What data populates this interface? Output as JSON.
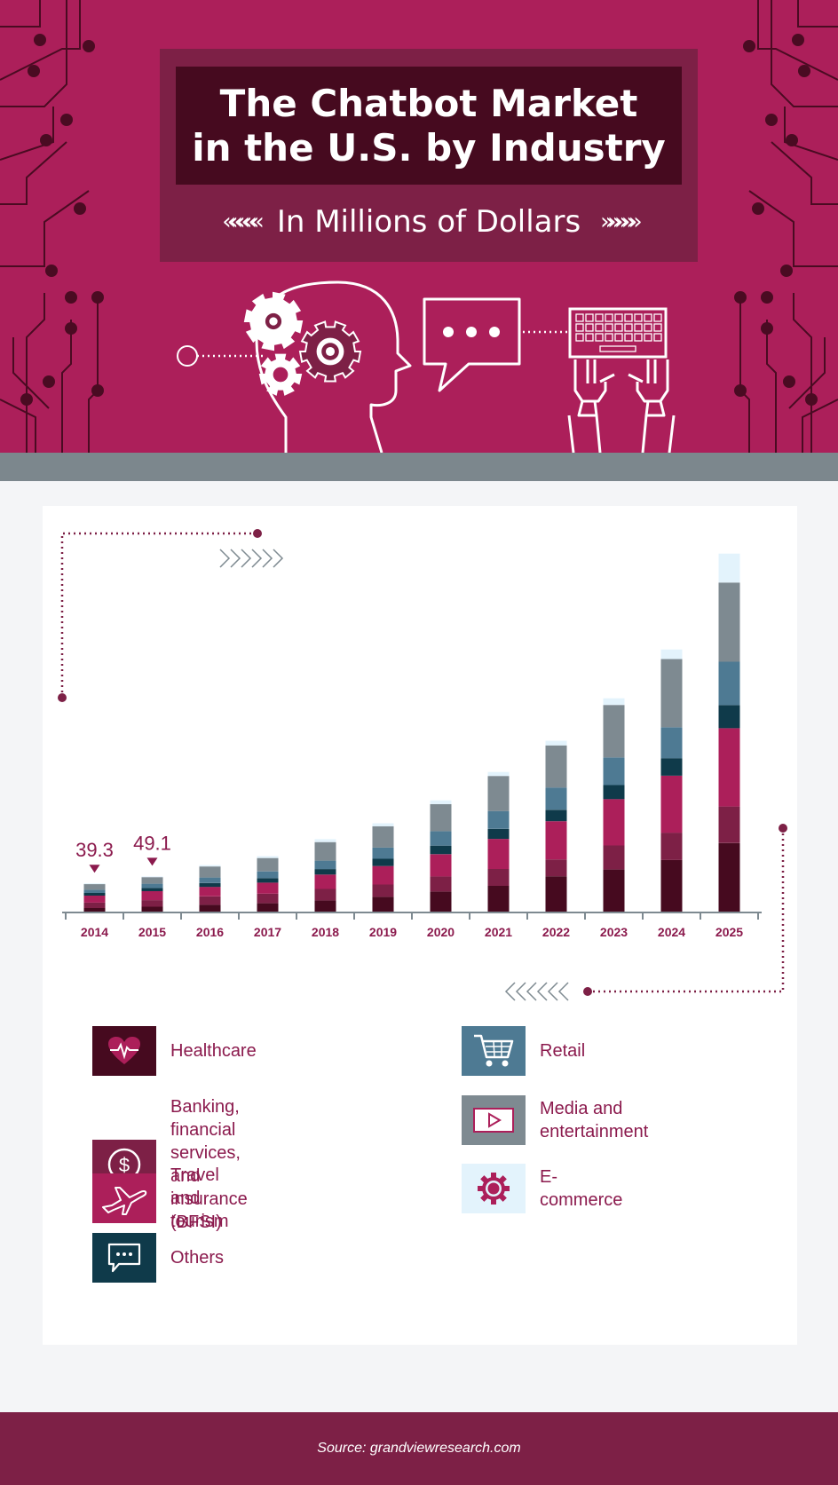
{
  "header": {
    "title_line1": "The Chatbot Market",
    "title_line2": "in the U.S. by Industry",
    "subtitle": "In Millions of Dollars",
    "chevrons_left": "«««««",
    "chevrons_right": "»»»»»"
  },
  "colors": {
    "header_bg": "#ac1f5a",
    "title_box": "#7d2046",
    "title_inner": "#460a1f",
    "band": "#7c878d",
    "footer": "#7d2046",
    "label": "#8b1a4d"
  },
  "chart_data": {
    "type": "bar",
    "stacked": true,
    "categories": [
      "2014",
      "2015",
      "2016",
      "2017",
      "2018",
      "2019",
      "2020",
      "2021",
      "2022",
      "2023",
      "2024",
      "2025"
    ],
    "annotations": [
      {
        "category": "2014",
        "text": "39.3"
      },
      {
        "category": "2015",
        "text": "49.1"
      }
    ],
    "series": [
      {
        "name": "Healthcare",
        "color": "#460a1f",
        "values": [
          5.0,
          6.9,
          9.5,
          11.6,
          15.6,
          20.5,
          27.9,
          35.9,
          49.3,
          58.7,
          71.9,
          95.6
        ]
      },
      {
        "name": "Banking, financial services, and insurance (BFSI)",
        "color": "#7d2046",
        "values": [
          7.5,
          9.1,
          11.7,
          13.4,
          16.0,
          17.2,
          21.2,
          23.6,
          23.4,
          33.5,
          38.1,
          50.9
        ]
      },
      {
        "name": "Travel and tourism",
        "color": "#ac1f5a",
        "values": [
          9.8,
          12.5,
          13.3,
          15.4,
          20.0,
          25.8,
          30.9,
          41.9,
          53.3,
          64.7,
          79.4,
          109.2
        ]
      },
      {
        "name": "Others",
        "color": "#0f3a4a",
        "values": [
          3.7,
          4.4,
          5.4,
          6.3,
          7.7,
          10.1,
          11.9,
          14.0,
          16.0,
          19.5,
          24.4,
          32.3
        ]
      },
      {
        "name": "Retail",
        "color": "#4e7a93",
        "values": [
          4.5,
          5.9,
          7.6,
          9.4,
          11.7,
          15.6,
          20.2,
          24.8,
          31.0,
          38.6,
          43.3,
          60.4
        ]
      },
      {
        "name": "Media and entertainment",
        "color": "#7e8a91",
        "values": [
          7.8,
          9.2,
          15.4,
          18.6,
          25.9,
          29.8,
          37.8,
          48.9,
          58.8,
          73.1,
          95.0,
          110.4
        ]
      },
      {
        "name": "E-commerce",
        "color": "#e3f3fc",
        "values": [
          1.0,
          1.1,
          1.9,
          2.7,
          4.1,
          4.2,
          5.2,
          5.6,
          6.5,
          9.3,
          13.4,
          40.3
        ]
      }
    ]
  },
  "legend": [
    {
      "label": "Healthcare",
      "icon": "heart-pulse-icon",
      "color": "#460a1f"
    },
    {
      "label": "Banking, financial services, and insurance (BFSI)",
      "icon": "dollar-coin-icon",
      "color": "#7d2046"
    },
    {
      "label": "Travel and tourism",
      "icon": "airplane-icon",
      "color": "#ac1f5a"
    },
    {
      "label": "Others",
      "icon": "chat-bubble-icon",
      "color": "#0f3a4a"
    },
    {
      "label": "Retail",
      "icon": "shopping-cart-icon",
      "color": "#4e7a93"
    },
    {
      "label": "Media and entertainment",
      "icon": "play-button-icon",
      "color": "#7e8a91"
    },
    {
      "label": "E-commerce",
      "icon": "gear-icon",
      "color": "#e3f3fc"
    }
  ],
  "footer": {
    "source": "Source: grandviewresearch.com"
  }
}
